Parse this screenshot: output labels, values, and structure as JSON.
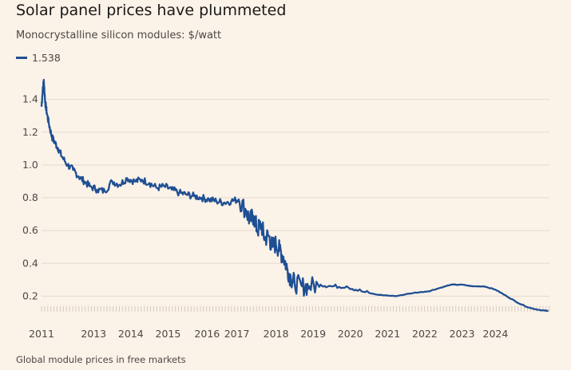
{
  "chart_data": {
    "type": "line",
    "title": "Solar panel prices have plummeted",
    "subtitle": "Monocrystalline silicon modules: $/watt",
    "source": "Global module prices in free markets",
    "legend": "top-left",
    "grid": true,
    "colors": {
      "series": "#1f4f93",
      "background": "#fbf2e8",
      "grid": "#e6d9ce"
    },
    "ylim": [
      0.1,
      1.52
    ],
    "xlim": [
      2011.0,
      2024.65
    ],
    "y_ticks": [
      "0.2",
      "0.4",
      "0.6",
      "0.8",
      "1.0",
      "1.2",
      "1.4"
    ],
    "x_ticks": [
      "2011",
      "2013",
      "2014",
      "2015",
      "2016",
      "2017",
      "2018",
      "2019",
      "2020",
      "2021",
      "2022",
      "2023",
      "2024"
    ],
    "x_tick_values": [
      2011.0,
      2012.4,
      2013.4,
      2014.4,
      2015.45,
      2016.25,
      2017.3,
      2018.3,
      2019.3,
      2020.3,
      2021.3,
      2022.3,
      2023.2
    ],
    "series": [
      {
        "name": "1.538",
        "x": [
          2011.0,
          2011.03,
          2011.06,
          2011.1,
          2011.14,
          2011.2,
          2011.28,
          2011.35,
          2011.45,
          2011.55,
          2011.7,
          2011.85,
          2012.0,
          2012.15,
          2012.3,
          2012.5,
          2012.7,
          2012.9,
          2013.1,
          2013.3,
          2013.5,
          2013.7,
          2013.9,
          2014.1,
          2014.3,
          2014.5,
          2014.7,
          2014.9,
          2015.1,
          2015.3,
          2015.5,
          2015.7,
          2015.9,
          2016.1,
          2016.3,
          2016.5,
          2016.6,
          2016.7,
          2016.8,
          2016.9,
          2017.0,
          2017.1,
          2017.2,
          2017.3,
          2017.4,
          2017.5,
          2017.6,
          2017.7,
          2017.8,
          2018.0,
          2018.2,
          2018.5,
          2018.8,
          2019.2,
          2019.6,
          2020.0,
          2020.5,
          2021.0,
          2021.4,
          2021.7,
          2022.0,
          2022.3,
          2022.6,
          2022.9,
          2023.2,
          2023.5,
          2023.8,
          2024.1,
          2024.4,
          2024.6
        ],
        "values": [
          1.36,
          1.45,
          1.52,
          1.38,
          1.32,
          1.25,
          1.17,
          1.14,
          1.1,
          1.05,
          1.0,
          0.97,
          0.93,
          0.9,
          0.87,
          0.85,
          0.84,
          0.9,
          0.88,
          0.92,
          0.9,
          0.91,
          0.89,
          0.86,
          0.87,
          0.85,
          0.83,
          0.82,
          0.81,
          0.8,
          0.79,
          0.78,
          0.77,
          0.78,
          0.79,
          0.72,
          0.66,
          0.69,
          0.6,
          0.64,
          0.55,
          0.57,
          0.5,
          0.52,
          0.48,
          0.44,
          0.37,
          0.31,
          0.28,
          0.26,
          0.26,
          0.27,
          0.26,
          0.26,
          0.23,
          0.21,
          0.2,
          0.22,
          0.23,
          0.25,
          0.27,
          0.27,
          0.26,
          0.26,
          0.24,
          0.2,
          0.16,
          0.13,
          0.115,
          0.11
        ]
      }
    ]
  }
}
